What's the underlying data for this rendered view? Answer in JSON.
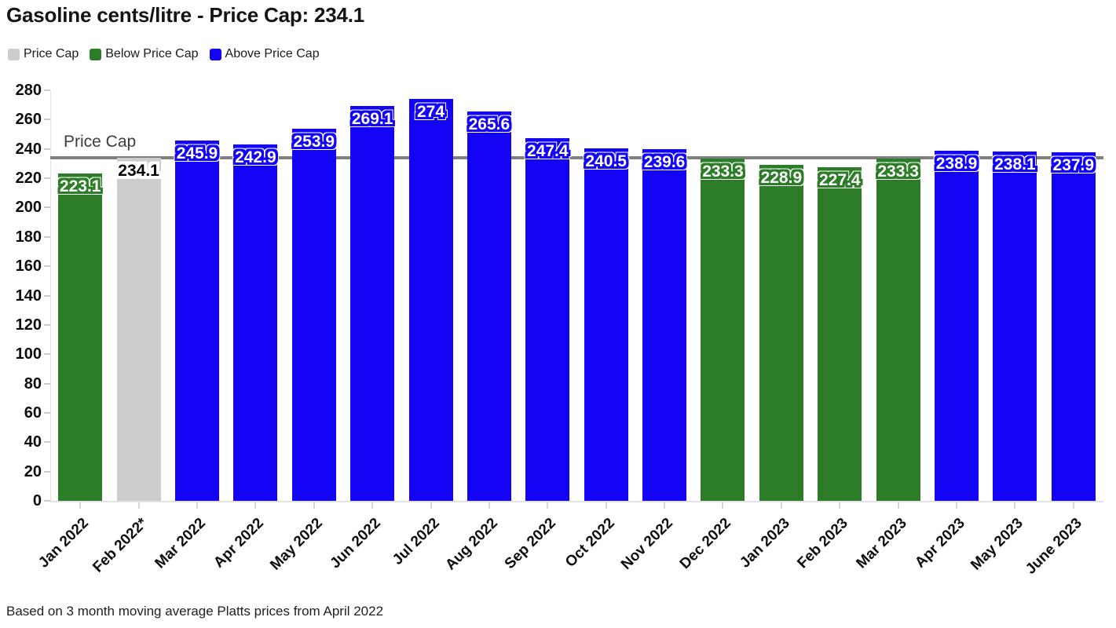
{
  "title": "Gasoline cents/litre - Price Cap: 234.1",
  "legend": [
    {
      "label": "Price Cap",
      "color": "#cccccc"
    },
    {
      "label": "Below Price Cap",
      "color": "#2d7d28"
    },
    {
      "label": "Above Price Cap",
      "color": "#1404f6"
    }
  ],
  "footer": "Based on 3 month moving average Platts prices from April 2022",
  "chart_data": {
    "type": "bar",
    "title": "Gasoline cents/litre - Price Cap: 234.1",
    "categories": [
      "Jan 2022",
      "Feb 2022*",
      "Mar 2022",
      "Apr 2022",
      "May 2022",
      "Jun 2022",
      "Jul 2022",
      "Aug 2022",
      "Sep 2022",
      "Oct 2022",
      "Nov 2022",
      "Dec 2022",
      "Jan 2023",
      "Feb 2023",
      "Mar 2023",
      "Apr 2023",
      "May 2023",
      "June 2023"
    ],
    "values": [
      223.1,
      234.1,
      245.9,
      242.9,
      253.9,
      269.1,
      274,
      265.6,
      247.4,
      240.5,
      239.6,
      233.3,
      228.9,
      227.4,
      233.3,
      238.9,
      238.1,
      237.9
    ],
    "value_labels": [
      "223.1",
      "234.1",
      "245.9",
      "242.9",
      "253.9",
      "269.1",
      "274",
      "265.6",
      "247.4",
      "240.5",
      "239.6",
      "233.3",
      "228.9",
      "227.4",
      "233.3",
      "238.9",
      "238.1",
      "237.9"
    ],
    "bar_types": [
      "below",
      "cap",
      "above",
      "above",
      "above",
      "above",
      "above",
      "above",
      "above",
      "above",
      "above",
      "below",
      "below",
      "below",
      "below",
      "above",
      "above",
      "above"
    ],
    "price_cap": 234.1,
    "price_cap_line_label": "Price Cap",
    "ylabel": "",
    "xlabel": "",
    "ylim": [
      0,
      280
    ],
    "ytick_step": 20,
    "grid": false,
    "legend_position": "top-left",
    "colors": {
      "cap_bar": "#cccccc",
      "below": "#2d7d28",
      "above": "#1404f6",
      "cap_line": "#7f7f7f"
    }
  }
}
